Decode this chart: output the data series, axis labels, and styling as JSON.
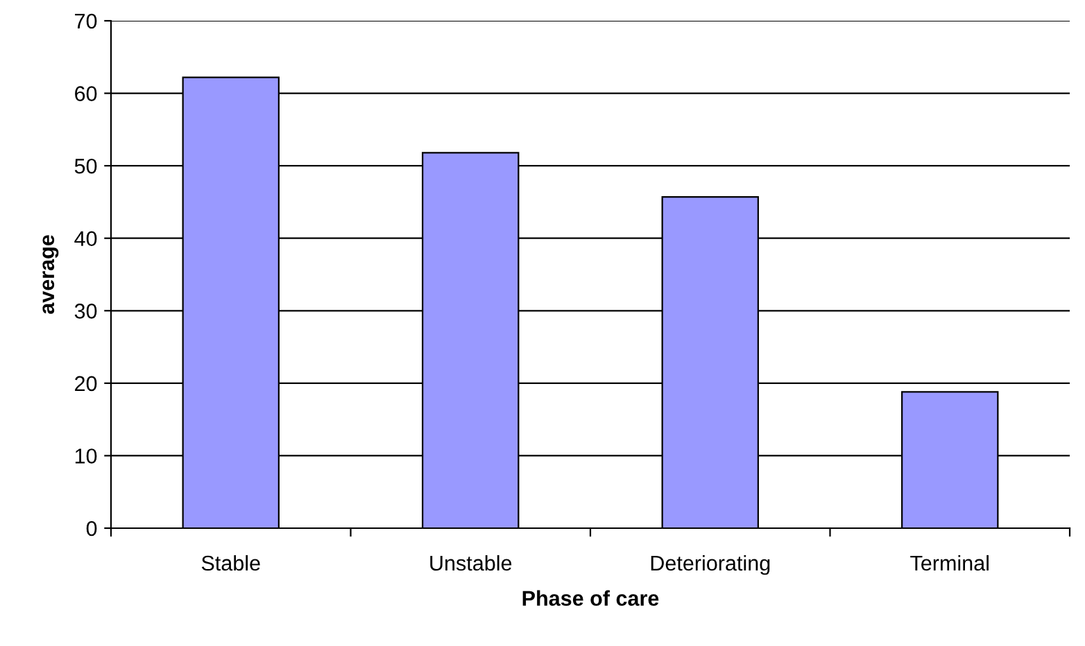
{
  "chart_data": {
    "type": "bar",
    "xlabel": "Phase of care",
    "ylabel": "average",
    "categories": [
      "Stable",
      "Unstable",
      "Deteriorating",
      "Terminal"
    ],
    "values": [
      62.2,
      51.8,
      45.7,
      18.8
    ],
    "color": "#9999ff",
    "ylim": [
      0,
      70
    ],
    "yticks": [
      0,
      10,
      20,
      30,
      40,
      50,
      60,
      70
    ],
    "grid": "y"
  }
}
